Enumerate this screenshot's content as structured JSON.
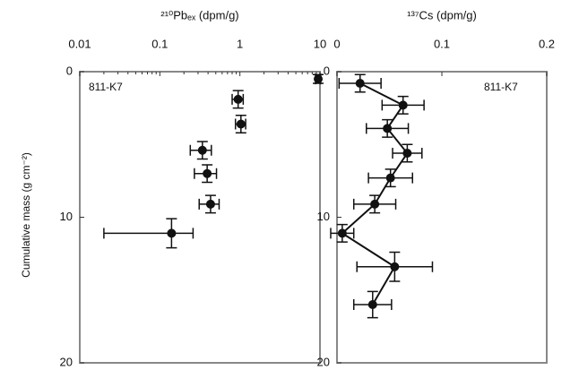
{
  "chart_data": [
    {
      "type": "scatter",
      "title": "²¹⁰Pbₑₓ (dpm/g)",
      "annotation": "811-K7",
      "ylabel": "Cumulative mass (g cm⁻²)",
      "x": [
        9.5,
        0.95,
        1.03,
        0.34,
        0.39,
        0.43,
        0.14
      ],
      "values": [
        0.5,
        1.9,
        3.6,
        5.4,
        7.0,
        9.1,
        11.1
      ],
      "xerr": [
        0.7,
        0.15,
        0.15,
        0.1,
        0.12,
        0.12,
        0.12
      ],
      "yerr": [
        0.3,
        0.6,
        0.6,
        0.6,
        0.6,
        0.6,
        1.0
      ],
      "xlim": [
        0.01,
        10
      ],
      "xticks": [
        0.01,
        0.1,
        1,
        10
      ],
      "xscale": "log",
      "ylim": [
        0,
        20
      ],
      "yticks": [
        0,
        10,
        20
      ],
      "y_inverted": true,
      "color": "#111111",
      "line": false
    },
    {
      "type": "scatter",
      "title": "¹³⁷Cs (dpm/g)",
      "annotation": "811-K7",
      "x": [
        0.022,
        0.063,
        0.048,
        0.067,
        0.051,
        0.036,
        0.005,
        0.055,
        0.034
      ],
      "values": [
        0.8,
        2.3,
        3.9,
        5.6,
        7.3,
        9.1,
        11.1,
        13.4,
        16.0
      ],
      "xerr": [
        0.02,
        0.02,
        0.02,
        0.014,
        0.021,
        0.02,
        0.011,
        0.036,
        0.018
      ],
      "yerr": [
        0.6,
        0.6,
        0.6,
        0.6,
        0.6,
        0.6,
        0.6,
        1.0,
        0.9
      ],
      "xlim": [
        0,
        0.2
      ],
      "xticks": [
        0,
        0.1,
        0.2
      ],
      "xscale": "linear",
      "ylim": [
        0,
        20
      ],
      "yticks": [
        0,
        10,
        20
      ],
      "y_inverted": true,
      "color": "#111111",
      "line": true
    }
  ]
}
